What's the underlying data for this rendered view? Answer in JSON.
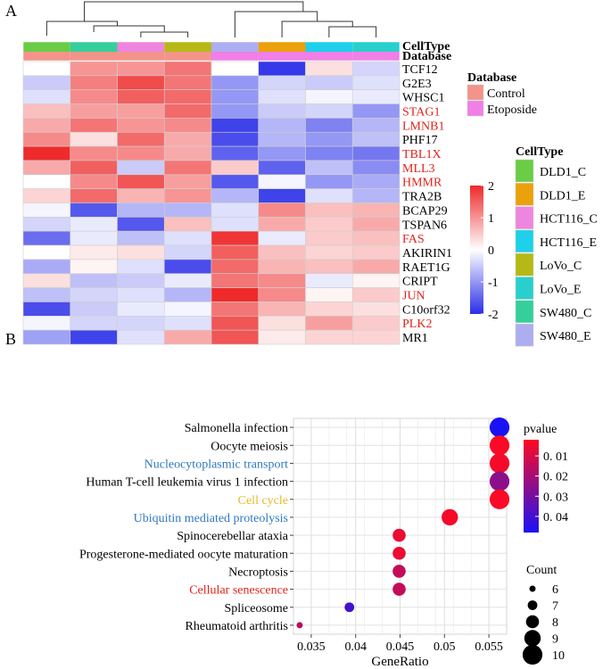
{
  "panel_labels": [
    "A",
    "B"
  ],
  "chart_data": [
    {
      "type": "heatmap",
      "panel": "A",
      "annotation_rows": [
        "CellType",
        "Database"
      ],
      "genes": [
        "TCF12",
        "G2E3",
        "WHSC1",
        "STAG1",
        "LMNB1",
        "PHF17",
        "TBL1X",
        "MLL3",
        "HMMR",
        "TRA2B",
        "BCAP29",
        "TSPAN6",
        "FAS",
        "AKIRIN1",
        "RAET1G",
        "CRIPT",
        "JUN",
        "C10orf32",
        "PLK2",
        "MR1"
      ],
      "highlighted_genes": [
        "STAG1",
        "LMNB1",
        "TBL1X",
        "MLL3",
        "HMMR",
        "FAS",
        "JUN",
        "PLK2"
      ],
      "columns": [
        {
          "celltype": "DLD1_C",
          "database": "Control"
        },
        {
          "celltype": "SW480_C",
          "database": "Control"
        },
        {
          "celltype": "HCT116_C",
          "database": "Control"
        },
        {
          "celltype": "LoVo_C",
          "database": "Control"
        },
        {
          "celltype": "SW480_E",
          "database": "Etoposide"
        },
        {
          "celltype": "DLD1_E",
          "database": "Etoposide"
        },
        {
          "celltype": "HCT116_E",
          "database": "Etoposide"
        },
        {
          "celltype": "LoVo_E",
          "database": "Etoposide"
        }
      ],
      "values": [
        [
          0.0,
          1.0,
          1.0,
          1.3,
          0.0,
          -1.9,
          0.3,
          -0.4
        ],
        [
          -0.5,
          1.2,
          1.7,
          1.3,
          -1.0,
          -0.4,
          -0.5,
          -0.3
        ],
        [
          -0.3,
          1.1,
          1.5,
          1.4,
          -1.0,
          -0.3,
          -0.1,
          -0.2
        ],
        [
          0.6,
          0.9,
          0.9,
          1.4,
          -1.0,
          -0.5,
          -0.4,
          -1.0
        ],
        [
          0.8,
          1.3,
          1.0,
          1.1,
          -1.8,
          -0.7,
          -1.2,
          -0.7
        ],
        [
          1.1,
          0.3,
          1.4,
          0.8,
          -1.7,
          -0.7,
          -1.0,
          -0.6
        ],
        [
          2.0,
          1.1,
          1.1,
          0.8,
          -1.5,
          -1.0,
          -1.2,
          -1.3
        ],
        [
          0.8,
          1.5,
          -0.5,
          1.3,
          0.5,
          -1.5,
          -0.6,
          -1.1
        ],
        [
          0.0,
          1.1,
          1.6,
          0.9,
          -1.6,
          -0.1,
          -1.0,
          -0.8
        ],
        [
          0.4,
          1.4,
          0.7,
          1.0,
          -0.7,
          -1.8,
          -0.3,
          -0.7
        ],
        [
          -0.1,
          -1.6,
          -0.7,
          -0.7,
          -0.3,
          1.1,
          0.6,
          0.7
        ],
        [
          -0.4,
          -0.2,
          -1.6,
          0.6,
          -0.3,
          0.8,
          0.5,
          0.8
        ],
        [
          -1.4,
          -0.2,
          -0.6,
          -0.3,
          1.9,
          -0.2,
          0.5,
          0.6
        ],
        [
          0.0,
          0.2,
          0.3,
          -0.4,
          1.5,
          0.6,
          0.4,
          0.5
        ],
        [
          -0.8,
          0.1,
          -0.3,
          -1.7,
          1.4,
          0.7,
          0.6,
          0.8
        ],
        [
          0.3,
          -0.6,
          -0.5,
          -0.2,
          1.3,
          1.1,
          -0.2,
          0.1
        ],
        [
          -0.6,
          -0.4,
          -0.3,
          -0.7,
          2.0,
          1.1,
          0.1,
          0.5
        ],
        [
          -1.7,
          -0.5,
          -0.2,
          -0.1,
          1.3,
          0.7,
          0.4,
          0.3
        ],
        [
          -0.1,
          -0.4,
          -0.4,
          -0.3,
          1.6,
          0.3,
          0.9,
          0.5
        ],
        [
          -0.9,
          -1.8,
          -0.3,
          0.8,
          1.6,
          0.2,
          0.4,
          0.4
        ]
      ],
      "color_scale": {
        "min": -2,
        "max": 2,
        "low": "#2a2ee8",
        "mid": "#ffffff",
        "high": "#ee2a2a",
        "ticks": [
          2,
          1,
          0,
          -1,
          -2
        ]
      },
      "legends": {
        "database": {
          "title": "Database",
          "items": [
            {
              "label": "Control",
              "color": "#f2948a"
            },
            {
              "label": "Etoposide",
              "color": "#f07fe6"
            }
          ]
        },
        "celltype": {
          "title": "CellType",
          "items": [
            {
              "label": "DLD1_C",
              "color": "#6acd45"
            },
            {
              "label": "DLD1_E",
              "color": "#eba10b"
            },
            {
              "label": "HCT116_C",
              "color": "#ee85de"
            },
            {
              "label": "HCT116_E",
              "color": "#1ed0ea"
            },
            {
              "label": "LoVo_C",
              "color": "#b6b915"
            },
            {
              "label": "LoVo_E",
              "color": "#28d0cd"
            },
            {
              "label": "SW480_C",
              "color": "#35cf9b"
            },
            {
              "label": "SW480_E",
              "color": "#acaef0"
            }
          ]
        }
      }
    },
    {
      "type": "scatter",
      "subtype": "dotplot",
      "panel": "B",
      "xlabel": "GeneRatio",
      "xlim": [
        0.033,
        0.057
      ],
      "xticks": [
        0.035,
        0.04,
        0.045,
        0.05,
        0.055
      ],
      "xtick_labels": [
        "0.035",
        "0.04",
        "0.045",
        "0.05",
        "0.055"
      ],
      "terms": [
        {
          "label": "Salmonella infection",
          "label_color": "#000000",
          "gene_ratio": 0.0562,
          "count": 10,
          "pvalue": 0.048
        },
        {
          "label": "Oocyte meiosis",
          "label_color": "#000000",
          "gene_ratio": 0.0562,
          "count": 10,
          "pvalue": 0.003
        },
        {
          "label": "Nucleocytoplasmic transport",
          "label_color": "#2f79c0",
          "gene_ratio": 0.0562,
          "count": 10,
          "pvalue": 0.004
        },
        {
          "label": "Human T-cell leukemia virus 1 infection",
          "label_color": "#000000",
          "gene_ratio": 0.0562,
          "count": 10,
          "pvalue": 0.025
        },
        {
          "label": "Cell cycle",
          "label_color": "#e8b82a",
          "gene_ratio": 0.0562,
          "count": 10,
          "pvalue": 0.003
        },
        {
          "label": "Ubiquitin mediated proteolysis",
          "label_color": "#2f79c0",
          "gene_ratio": 0.0506,
          "count": 9,
          "pvalue": 0.004
        },
        {
          "label": "Spinocerebellar ataxia",
          "label_color": "#000000",
          "gene_ratio": 0.0449,
          "count": 8,
          "pvalue": 0.006
        },
        {
          "label": "Progesterone-mediated oocyte maturation",
          "label_color": "#000000",
          "gene_ratio": 0.0449,
          "count": 8,
          "pvalue": 0.006
        },
        {
          "label": "Necroptosis",
          "label_color": "#000000",
          "gene_ratio": 0.0449,
          "count": 8,
          "pvalue": 0.014
        },
        {
          "label": "Cellular senescence",
          "label_color": "#e0241b",
          "gene_ratio": 0.0449,
          "count": 8,
          "pvalue": 0.014
        },
        {
          "label": "Spliceosome",
          "label_color": "#000000",
          "gene_ratio": 0.0393,
          "count": 7,
          "pvalue": 0.04
        },
        {
          "label": "Rheumatoid arthritis",
          "label_color": "#000000",
          "gene_ratio": 0.0337,
          "count": 6,
          "pvalue": 0.015
        }
      ],
      "pvalue_legend": {
        "title": "pvalue",
        "min": 0.002,
        "max": 0.048,
        "low_color": "#ff0a21",
        "high_color": "#1b11f5",
        "ticks": [
          0.01,
          0.02,
          0.03,
          0.04
        ],
        "tick_labels": [
          "0. 01",
          "0. 02",
          "0. 03",
          "0. 04"
        ]
      },
      "count_legend": {
        "title": "Count",
        "values": [
          6,
          7,
          8,
          9,
          10
        ]
      }
    }
  ]
}
